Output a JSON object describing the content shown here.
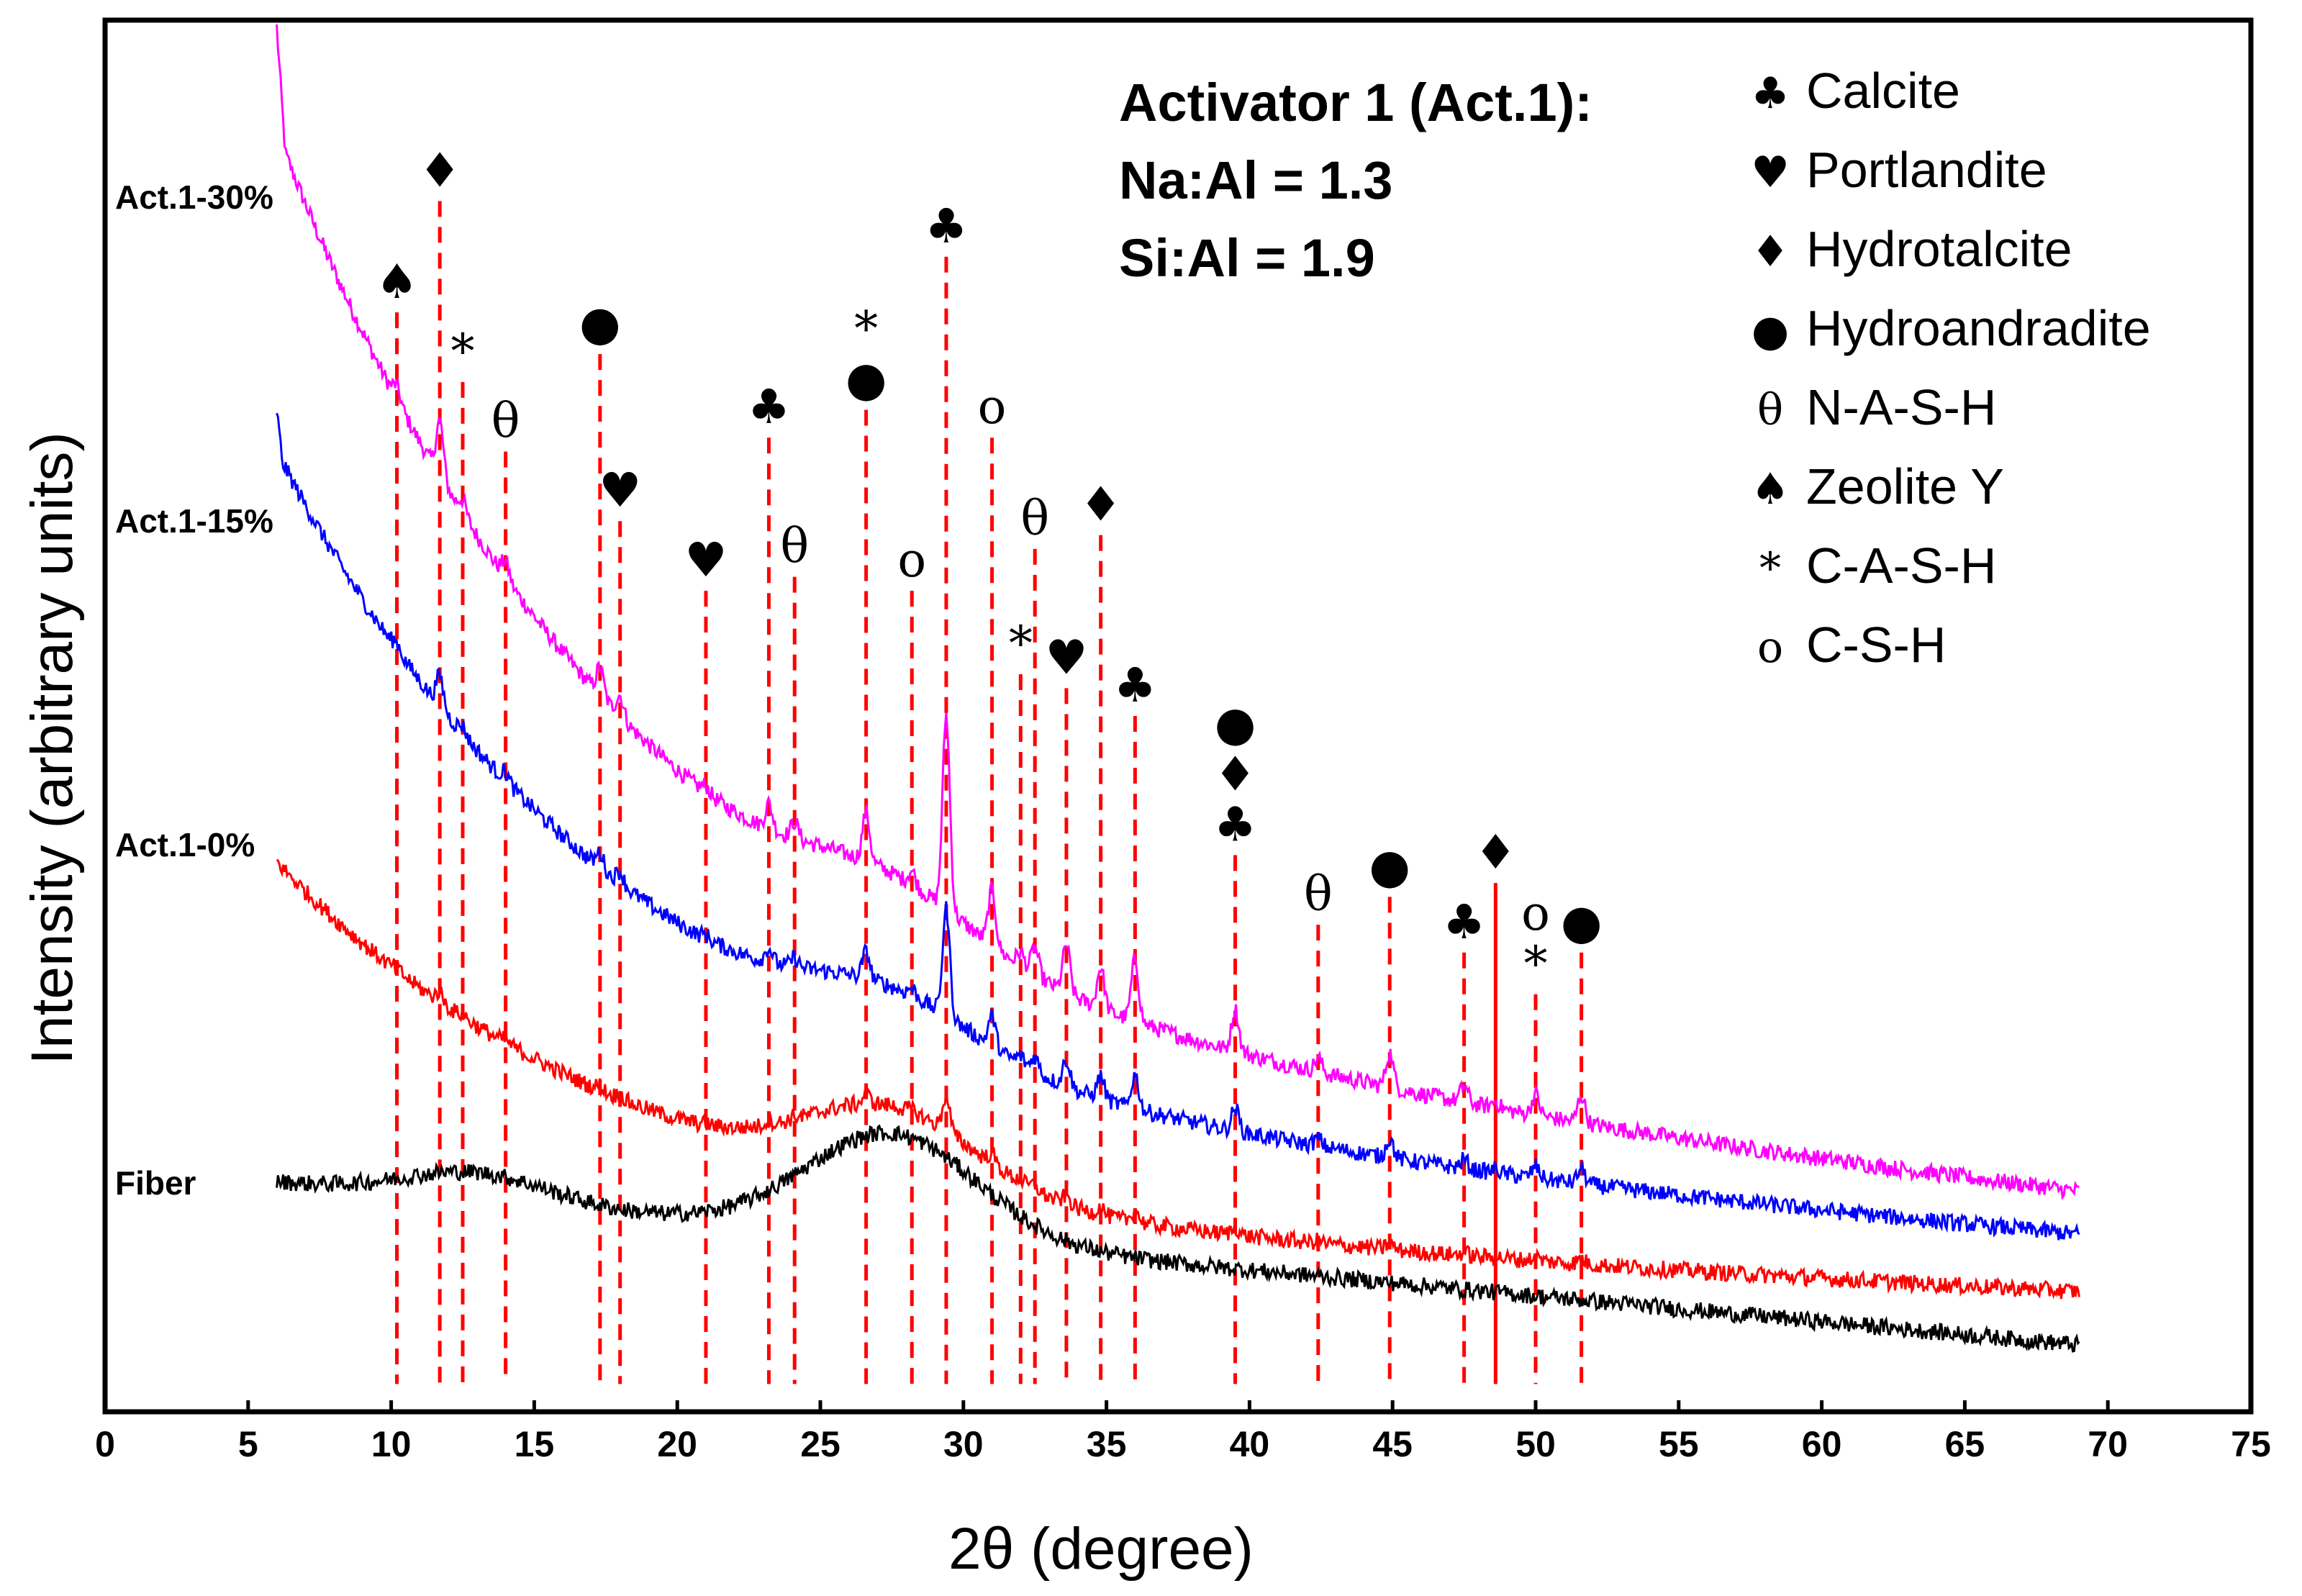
{
  "chart_data": {
    "type": "line",
    "title": "",
    "xlabel": "2θ (degree)",
    "ylabel": "Intensity (arbitrary units)",
    "xlim": [
      0,
      75
    ],
    "xticks": [
      0,
      5,
      10,
      15,
      20,
      25,
      30,
      35,
      40,
      45,
      50,
      55,
      60,
      65,
      70,
      75
    ],
    "y_ticks_shown": false,
    "annotation": {
      "line1": "Activator 1 (Act.1):",
      "line2": "Na:Al = 1.3",
      "line3": "Si:Al = 1.9"
    },
    "legend": [
      {
        "symbol": "♣",
        "label": "Calcite"
      },
      {
        "symbol": "♥",
        "label": "Portlandite"
      },
      {
        "symbol": "♦",
        "label": "Hydrotalcite"
      },
      {
        "symbol": "●",
        "label": "Hydroandradite"
      },
      {
        "symbol": "θ",
        "label": "N-A-S-H"
      },
      {
        "symbol": "♠",
        "label": "Zeolite Y"
      },
      {
        "symbol": "*",
        "label": "C-A-S-H"
      },
      {
        "symbol": "o",
        "label": "C-S-H"
      }
    ],
    "series": [
      {
        "name": "Act.1-30%",
        "color": "#ff00ff",
        "x_range": [
          6,
          69
        ],
        "baseline_start": 0.92,
        "baseline_end": 0.155,
        "hump_center": 27.5,
        "hump_height": 0.035
      },
      {
        "name": "Act.1-15%",
        "color": "#0000ff",
        "x_range": [
          6,
          69
        ],
        "baseline_start": 0.69,
        "baseline_end": 0.125,
        "hump_center": 27.5,
        "hump_height": 0.035
      },
      {
        "name": "Act.1-0%",
        "color": "#ff0000",
        "x_range": [
          6,
          69
        ],
        "baseline_start": 0.395,
        "baseline_end": 0.085,
        "hump_center": 27.5,
        "hump_height": 0.055
      },
      {
        "name": "Fiber",
        "color": "#000000",
        "x_range": [
          6,
          69
        ],
        "baseline_start": 0.165,
        "baseline_end": 0.048,
        "hump_center": 27.5,
        "hump_height": 0.075
      }
    ],
    "peak_markers": [
      {
        "x": 10.2,
        "symbols": [
          "♠"
        ]
      },
      {
        "x": 11.7,
        "symbols": [
          "♦"
        ]
      },
      {
        "x": 12.5,
        "symbols": [
          "*"
        ]
      },
      {
        "x": 14.0,
        "symbols": [
          "θ"
        ]
      },
      {
        "x": 17.3,
        "symbols": [
          "●"
        ]
      },
      {
        "x": 18.0,
        "symbols": [
          "♥"
        ]
      },
      {
        "x": 21.0,
        "symbols": [
          "♥"
        ]
      },
      {
        "x": 23.2,
        "symbols": [
          "♣"
        ]
      },
      {
        "x": 24.1,
        "symbols": [
          "θ"
        ]
      },
      {
        "x": 26.6,
        "symbols": [
          "*",
          "●"
        ]
      },
      {
        "x": 28.2,
        "symbols": [
          "o"
        ]
      },
      {
        "x": 29.4,
        "symbols": [
          "♣"
        ]
      },
      {
        "x": 31.0,
        "symbols": [
          "o"
        ]
      },
      {
        "x": 32.0,
        "symbols": [
          "*"
        ]
      },
      {
        "x": 32.5,
        "symbols": [
          "θ"
        ]
      },
      {
        "x": 33.6,
        "symbols": [
          "♥"
        ]
      },
      {
        "x": 34.8,
        "symbols": [
          "♦"
        ]
      },
      {
        "x": 36.0,
        "symbols": [
          "♣"
        ]
      },
      {
        "x": 39.5,
        "symbols": [
          "●",
          "♦",
          "♣"
        ]
      },
      {
        "x": 42.4,
        "symbols": [
          "θ"
        ]
      },
      {
        "x": 44.9,
        "symbols": [
          "●"
        ]
      },
      {
        "x": 47.5,
        "symbols": [
          "♣"
        ]
      },
      {
        "x": 48.6,
        "symbols": [
          "♦"
        ]
      },
      {
        "x": 50.0,
        "symbols": [
          "o",
          "*"
        ]
      },
      {
        "x": 51.6,
        "symbols": [
          "●"
        ]
      }
    ]
  }
}
